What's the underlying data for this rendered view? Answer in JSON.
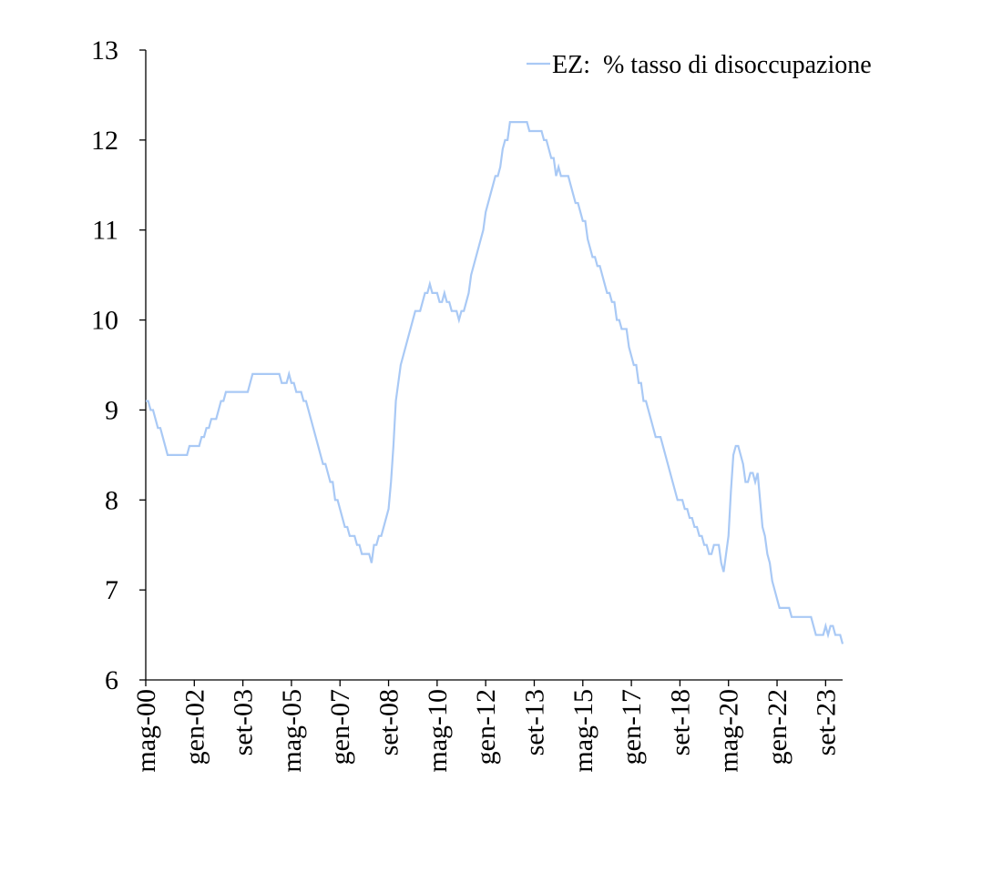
{
  "chart_data": {
    "type": "line",
    "categories": [
      "mag-00",
      null,
      null,
      null,
      null,
      null,
      null,
      null,
      null,
      null,
      null,
      null,
      null,
      null,
      null,
      null,
      null,
      null,
      null,
      null,
      "gen-02",
      null,
      null,
      null,
      null,
      null,
      null,
      null,
      null,
      null,
      null,
      null,
      null,
      null,
      null,
      null,
      null,
      null,
      null,
      null,
      "set-03",
      null,
      null,
      null,
      null,
      null,
      null,
      null,
      null,
      null,
      null,
      null,
      null,
      null,
      null,
      null,
      null,
      null,
      null,
      null,
      "mag-05",
      null,
      null,
      null,
      null,
      null,
      null,
      null,
      null,
      null,
      null,
      null,
      null,
      null,
      null,
      null,
      null,
      null,
      null,
      null,
      "gen-07",
      null,
      null,
      null,
      null,
      null,
      null,
      null,
      null,
      null,
      null,
      null,
      null,
      null,
      null,
      null,
      null,
      null,
      null,
      null,
      "set-08",
      null,
      null,
      null,
      null,
      null,
      null,
      null,
      null,
      null,
      null,
      null,
      null,
      null,
      null,
      null,
      null,
      null,
      null,
      null,
      "mag-10",
      null,
      null,
      null,
      null,
      null,
      null,
      null,
      null,
      null,
      null,
      null,
      null,
      null,
      null,
      null,
      null,
      null,
      null,
      null,
      "gen-12",
      null,
      null,
      null,
      null,
      null,
      null,
      null,
      null,
      null,
      null,
      null,
      null,
      null,
      null,
      null,
      null,
      null,
      null,
      null,
      "set-13",
      null,
      null,
      null,
      null,
      null,
      null,
      null,
      null,
      null,
      null,
      null,
      null,
      null,
      null,
      null,
      null,
      null,
      null,
      null,
      "mag-15",
      null,
      null,
      null,
      null,
      null,
      null,
      null,
      null,
      null,
      null,
      null,
      null,
      null,
      null,
      null,
      null,
      null,
      null,
      null,
      "gen-17",
      null,
      null,
      null,
      null,
      null,
      null,
      null,
      null,
      null,
      null,
      null,
      null,
      null,
      null,
      null,
      null,
      null,
      null,
      null,
      "set-18",
      null,
      null,
      null,
      null,
      null,
      null,
      null,
      null,
      null,
      null,
      null,
      null,
      null,
      null,
      null,
      null,
      null,
      null,
      null,
      "mag-20",
      null,
      null,
      null,
      null,
      null,
      null,
      null,
      null,
      null,
      null,
      null,
      null,
      null,
      null,
      null,
      null,
      null,
      null,
      null,
      "gen-22",
      null,
      null,
      null,
      null,
      null,
      null,
      null,
      null,
      null,
      null,
      null,
      null,
      null,
      null,
      null,
      null,
      null,
      null,
      null,
      "set-23",
      null,
      null,
      null,
      null,
      null,
      null,
      null
    ],
    "series": [
      {
        "name": "EZ:  % tasso di disoccupazione",
        "color": "#a9c9f5",
        "values": [
          9.1,
          9.1,
          9.0,
          9.0,
          8.9,
          8.8,
          8.8,
          8.7,
          8.6,
          8.5,
          8.5,
          8.5,
          8.5,
          8.5,
          8.5,
          8.5,
          8.5,
          8.5,
          8.6,
          8.6,
          8.6,
          8.6,
          8.6,
          8.7,
          8.7,
          8.8,
          8.8,
          8.9,
          8.9,
          8.9,
          9.0,
          9.1,
          9.1,
          9.2,
          9.2,
          9.2,
          9.2,
          9.2,
          9.2,
          9.2,
          9.2,
          9.2,
          9.2,
          9.3,
          9.4,
          9.4,
          9.4,
          9.4,
          9.4,
          9.4,
          9.4,
          9.4,
          9.4,
          9.4,
          9.4,
          9.4,
          9.3,
          9.3,
          9.3,
          9.4,
          9.3,
          9.3,
          9.2,
          9.2,
          9.2,
          9.1,
          9.1,
          9.0,
          8.9,
          8.8,
          8.7,
          8.6,
          8.5,
          8.4,
          8.4,
          8.3,
          8.2,
          8.2,
          8.0,
          8.0,
          7.9,
          7.8,
          7.7,
          7.7,
          7.6,
          7.6,
          7.6,
          7.5,
          7.5,
          7.4,
          7.4,
          7.4,
          7.4,
          7.3,
          7.5,
          7.5,
          7.6,
          7.6,
          7.7,
          7.8,
          7.9,
          8.2,
          8.6,
          9.1,
          9.3,
          9.5,
          9.6,
          9.7,
          9.8,
          9.9,
          10.0,
          10.1,
          10.1,
          10.1,
          10.2,
          10.3,
          10.3,
          10.4,
          10.3,
          10.3,
          10.3,
          10.2,
          10.2,
          10.3,
          10.2,
          10.2,
          10.1,
          10.1,
          10.1,
          10.0,
          10.1,
          10.1,
          10.2,
          10.3,
          10.5,
          10.6,
          10.7,
          10.8,
          10.9,
          11.0,
          11.2,
          11.3,
          11.4,
          11.5,
          11.6,
          11.6,
          11.7,
          11.9,
          12.0,
          12.0,
          12.2,
          12.2,
          12.2,
          12.2,
          12.2,
          12.2,
          12.2,
          12.2,
          12.1,
          12.1,
          12.1,
          12.1,
          12.1,
          12.1,
          12.0,
          12.0,
          11.9,
          11.8,
          11.8,
          11.6,
          11.7,
          11.6,
          11.6,
          11.6,
          11.6,
          11.5,
          11.4,
          11.3,
          11.3,
          11.2,
          11.1,
          11.1,
          10.9,
          10.8,
          10.7,
          10.7,
          10.6,
          10.6,
          10.5,
          10.4,
          10.3,
          10.3,
          10.2,
          10.2,
          10.0,
          10.0,
          9.9,
          9.9,
          9.9,
          9.7,
          9.6,
          9.5,
          9.5,
          9.3,
          9.3,
          9.1,
          9.1,
          9.0,
          8.9,
          8.8,
          8.7,
          8.7,
          8.7,
          8.6,
          8.5,
          8.4,
          8.3,
          8.2,
          8.1,
          8.0,
          8.0,
          8.0,
          7.9,
          7.9,
          7.8,
          7.8,
          7.7,
          7.7,
          7.6,
          7.6,
          7.5,
          7.5,
          7.4,
          7.4,
          7.5,
          7.5,
          7.5,
          7.3,
          7.2,
          7.4,
          7.6,
          8.1,
          8.5,
          8.6,
          8.6,
          8.5,
          8.4,
          8.2,
          8.2,
          8.3,
          8.3,
          8.2,
          8.3,
          8.0,
          7.7,
          7.6,
          7.4,
          7.3,
          7.1,
          7.0,
          6.9,
          6.8,
          6.8,
          6.8,
          6.8,
          6.8,
          6.7,
          6.7,
          6.7,
          6.7,
          6.7,
          6.7,
          6.7,
          6.7,
          6.7,
          6.6,
          6.5,
          6.5,
          6.5,
          6.5,
          6.6,
          6.5,
          6.6,
          6.6,
          6.5,
          6.5,
          6.5,
          6.4
        ]
      }
    ],
    "ylim": [
      6,
      13
    ],
    "yticks": [
      6,
      7,
      8,
      9,
      10,
      11,
      12,
      13
    ],
    "grid": false,
    "legend": "upper right"
  }
}
